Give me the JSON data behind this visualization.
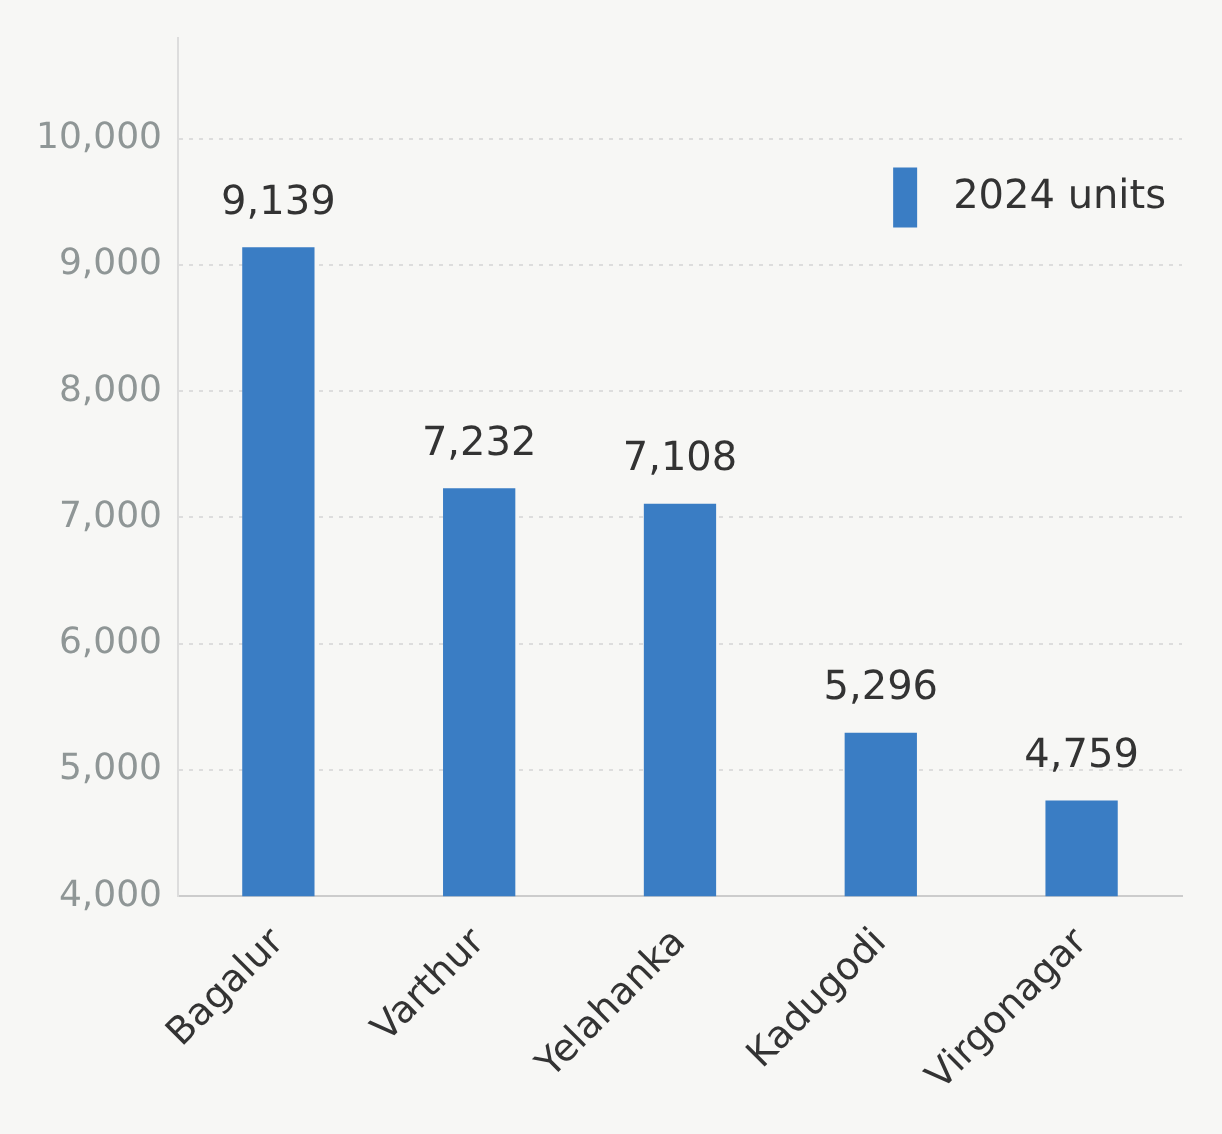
{
  "chart_data": {
    "type": "bar",
    "categories": [
      "Bagalur",
      "Varthur",
      "Yelahanka",
      "Kadugodi",
      "Virgonagar"
    ],
    "series": [
      {
        "name": "2024 units",
        "color": "#3a7dc4",
        "values": [
          9139,
          7232,
          7108,
          5296,
          4759
        ],
        "value_labels": [
          "9,139",
          "7,232",
          "7,108",
          "5,296",
          "4,759"
        ]
      }
    ],
    "ylim": [
      4000,
      10800
    ],
    "yticks": [
      {
        "value": 4000,
        "label": "4,000"
      },
      {
        "value": 5000,
        "label": "5,000"
      },
      {
        "value": 6000,
        "label": "6,000"
      },
      {
        "value": 7000,
        "label": "7,000"
      },
      {
        "value": 8000,
        "label": "8,000"
      },
      {
        "value": 9000,
        "label": "9,000"
      },
      {
        "value": 10000,
        "label": "10,000"
      }
    ],
    "grid": "y",
    "legend": "top right"
  }
}
